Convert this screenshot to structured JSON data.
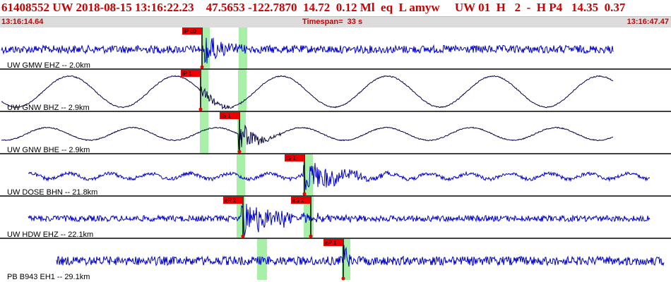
{
  "header": {
    "title": "61408552 UW 2018-08-15 13:16:22.23    47.5653 -122.7870  14.72  0.12 Ml  eq  L amyw     UW 01  H   2  -  H P4   14.35  0.37",
    "start_time": "13:16:14.64",
    "timespan": "Timespan=  33 s",
    "end_time": "13:16:47.47"
  },
  "colors": {
    "trace": "#0000cc",
    "long_period_trace": "#000044",
    "pick_flag": "#ee0000",
    "window": "#a8f0a8",
    "separator": "#000000",
    "accent_text": "#cc0000"
  },
  "channels": [
    {
      "label": "UW GMW EHZ -- 2.0km",
      "style": "noise",
      "picks": [
        {
          "label": "iP c0"
        }
      ],
      "windows": 2
    },
    {
      "label": "UW GNW BHZ -- 2.9km",
      "style": "long-period",
      "picks": [
        {
          "label": "iP 1"
        }
      ],
      "windows": 2
    },
    {
      "label": "UW GNW BHE -- 2.9km",
      "style": "long-period",
      "picks": [
        {
          "label": "iS 1"
        }
      ],
      "windows": 2
    },
    {
      "label": "UW DOSE BHN -- 21.8km",
      "style": "broadband",
      "picks": [
        {
          "label": "iS 1"
        }
      ],
      "windows": 2
    },
    {
      "label": "UW HDW EHZ -- 22.1km",
      "style": "noise",
      "picks": [
        {
          "label": "eP 2"
        },
        {
          "label": "eS 2"
        }
      ],
      "windows": 2
    },
    {
      "label": "PB B943 EH1 -- 29.1km",
      "style": "noise",
      "picks": [
        {
          "label": "eP 1"
        }
      ],
      "windows": 2
    }
  ]
}
